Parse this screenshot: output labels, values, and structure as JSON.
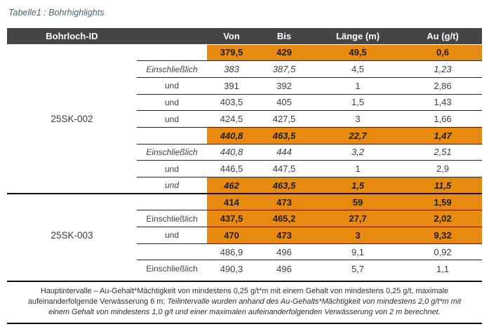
{
  "title": "Tabelle1 : Bohrhighlights",
  "colors": {
    "header_bg": "#454545",
    "header_text": "#ffffff",
    "highlight_orange": "#e98a10",
    "title_color": "#4a6370",
    "body_text": "#3d3d3d"
  },
  "table": {
    "headers": {
      "drillhole": "Bohrloch-ID",
      "von": "Von",
      "bis": "Bis",
      "laenge": "Länge (m)",
      "au": "Au (g/t)"
    },
    "groups": [
      {
        "id": "25SK-002",
        "rows": [
          {
            "label": "",
            "von": "379,5",
            "bis": "429",
            "laenge": "49,5",
            "au": "0,6"
          },
          {
            "label": "Einschließlich",
            "von": "383",
            "bis": "387,5",
            "laenge": "4,5",
            "au": "1,23"
          },
          {
            "label": "und",
            "von": "391",
            "bis": "392",
            "laenge": "1",
            "au": "2,86"
          },
          {
            "label": "und",
            "von": "403,5",
            "bis": "405",
            "laenge": "1,5",
            "au": "1,43"
          },
          {
            "label": "und",
            "von": "424,5",
            "bis": "427,5",
            "laenge": "3",
            "au": "1,66"
          },
          {
            "label": "",
            "von": "440,8",
            "bis": "463,5",
            "laenge": "22,7",
            "au": "1,47"
          },
          {
            "label": "Einschließlich",
            "von": "440,8",
            "bis": "444",
            "laenge": "3,2",
            "au": "2,51"
          },
          {
            "label": "und",
            "von": "446,5",
            "bis": "447,5",
            "laenge": "1",
            "au": "2,9"
          },
          {
            "label": "und",
            "von": "462",
            "bis": "463,5",
            "laenge": "1,5",
            "au": "11,5"
          }
        ]
      },
      {
        "id": "25SK-003",
        "rows": [
          {
            "label": "",
            "von": "414",
            "bis": "473",
            "laenge": "59",
            "au": "1,59"
          },
          {
            "label": "Einschließlich",
            "von": "437,5",
            "bis": "465,2",
            "laenge": "27,7",
            "au": "2,02"
          },
          {
            "label": "und",
            "von": "470",
            "bis": "473",
            "laenge": "3",
            "au": "9,32"
          },
          {
            "label": "",
            "von": "486,9",
            "bis": "496",
            "laenge": "9,1",
            "au": "0,92"
          },
          {
            "label": "Einschließlich",
            "von": "490,3",
            "bis": "496",
            "laenge": "5,7",
            "au": "1,1"
          }
        ]
      }
    ]
  },
  "footnote": {
    "normal": "Hauptintervalle – Au-Gehalt*Mächtigkeit von mindestens 0,25 g/t*m mit einem Gehalt von mindestens 0,25 g/t, maximale aufeinanderfolgende Verwässerung 6 m; ",
    "italic": "Teilintervalle wurden anhand des Au-Gehalts*Mächtigkeit von mindestens 2,0 g/t*m mit einem Gehalt von mindestens 1,0 g/t und einer maximalen aufeinanderfolgenden Verwässerung von 2 m berechnet."
  }
}
